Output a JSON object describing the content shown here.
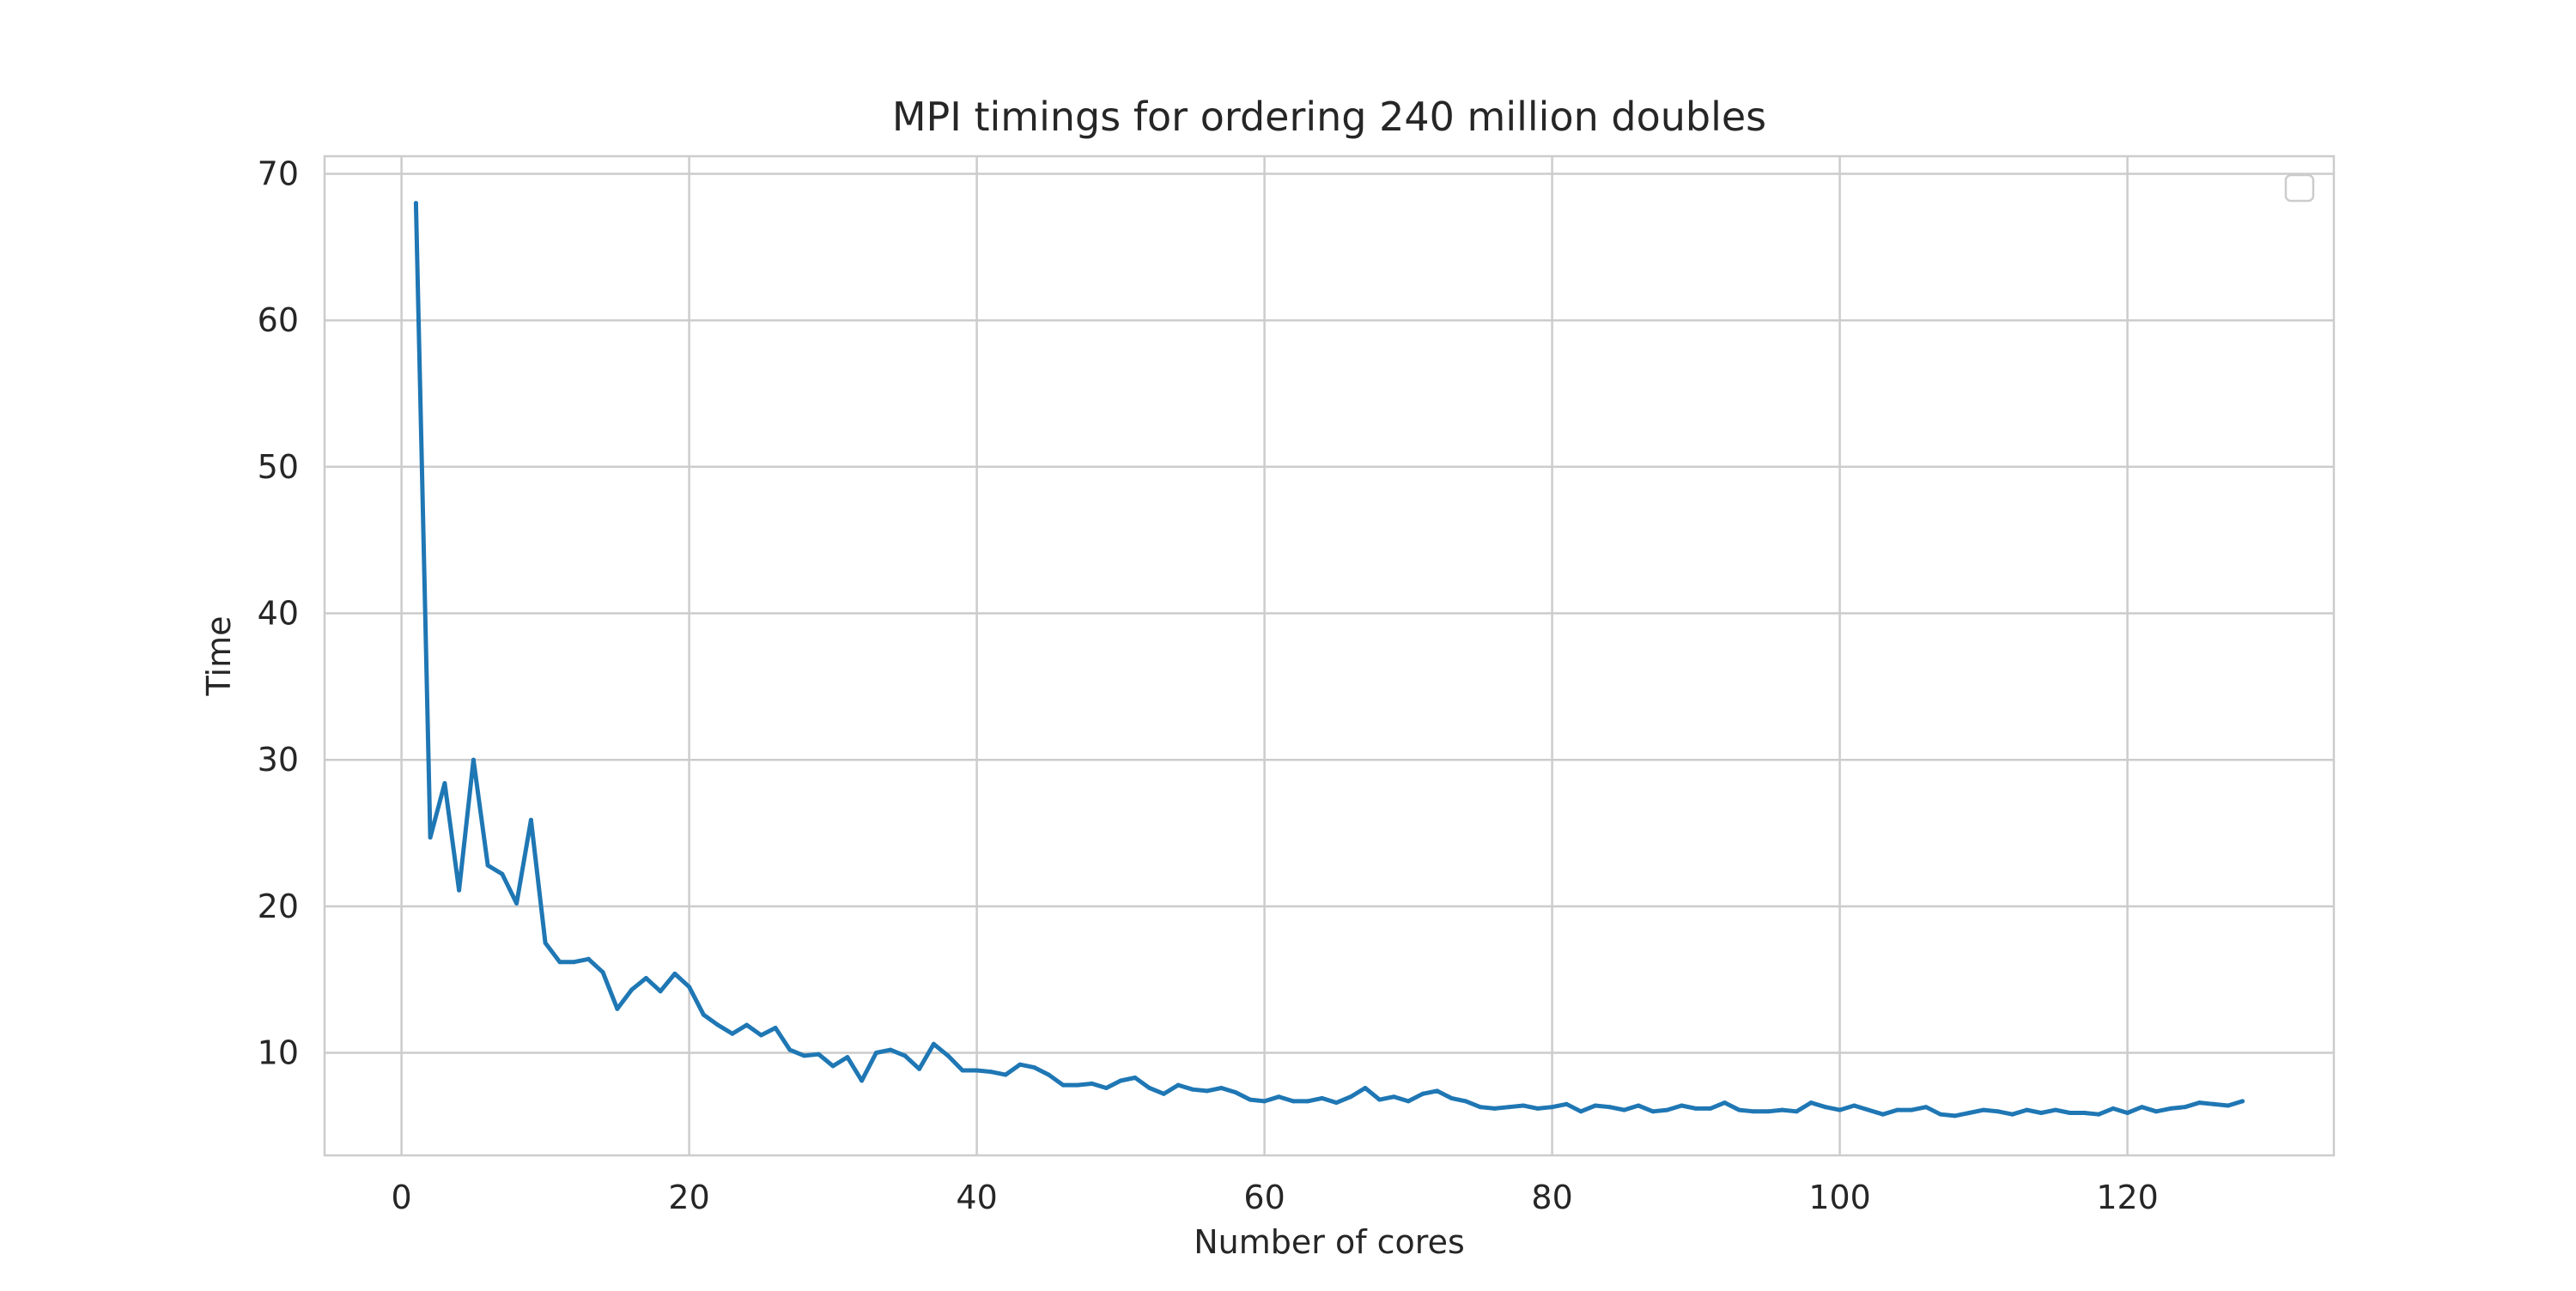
{
  "chart_data": {
    "type": "line",
    "title": "MPI timings for ordering 240 million doubles",
    "xlabel": "Number of cores",
    "ylabel": "Time",
    "xlim": [
      -5.35,
      134.35
    ],
    "ylim": [
      3.0,
      71.2
    ],
    "xticks": [
      0,
      20,
      40,
      60,
      80,
      100,
      120
    ],
    "yticks": [
      10,
      20,
      30,
      40,
      50,
      60,
      70
    ],
    "grid": true,
    "legend": {
      "placement": "top-right",
      "entries": []
    },
    "series": [
      {
        "color": "#1f77b4",
        "x": [
          1,
          2,
          3,
          4,
          5,
          6,
          7,
          8,
          9,
          10,
          11,
          12,
          13,
          14,
          15,
          16,
          17,
          18,
          19,
          20,
          21,
          22,
          23,
          24,
          25,
          26,
          27,
          28,
          29,
          30,
          31,
          32,
          33,
          34,
          35,
          36,
          37,
          38,
          39,
          40,
          41,
          42,
          43,
          44,
          45,
          46,
          47,
          48,
          49,
          50,
          51,
          52,
          53,
          54,
          55,
          56,
          57,
          58,
          59,
          60,
          61,
          62,
          63,
          64,
          65,
          66,
          67,
          68,
          69,
          70,
          71,
          72,
          73,
          74,
          75,
          76,
          77,
          78,
          79,
          80,
          81,
          82,
          83,
          84,
          85,
          86,
          87,
          88,
          89,
          90,
          91,
          92,
          93,
          94,
          95,
          96,
          97,
          98,
          99,
          100,
          101,
          102,
          103,
          104,
          105,
          106,
          107,
          108,
          109,
          110,
          111,
          112,
          113,
          114,
          115,
          116,
          117,
          118,
          119,
          120,
          121,
          122,
          123,
          124,
          125,
          126,
          127,
          128
        ],
        "y": [
          68.0,
          24.7,
          28.4,
          21.1,
          30.0,
          22.8,
          22.2,
          20.2,
          25.9,
          17.5,
          16.2,
          16.2,
          16.4,
          15.5,
          13.0,
          14.3,
          15.1,
          14.2,
          15.4,
          14.5,
          12.6,
          11.9,
          11.3,
          11.9,
          11.2,
          11.7,
          10.2,
          9.8,
          9.9,
          9.1,
          9.7,
          8.1,
          10.0,
          10.2,
          9.8,
          8.9,
          10.6,
          9.8,
          8.8,
          8.8,
          8.7,
          8.5,
          9.2,
          9.0,
          8.5,
          7.8,
          7.8,
          7.9,
          7.6,
          8.1,
          8.3,
          7.6,
          7.2,
          7.8,
          7.5,
          7.4,
          7.6,
          7.3,
          6.8,
          6.7,
          7.0,
          6.7,
          6.7,
          6.9,
          6.6,
          7.0,
          7.6,
          6.8,
          7.0,
          6.7,
          7.2,
          7.4,
          6.9,
          6.7,
          6.3,
          6.2,
          6.3,
          6.4,
          6.2,
          6.3,
          6.5,
          6.0,
          6.4,
          6.3,
          6.1,
          6.4,
          6.0,
          6.1,
          6.4,
          6.2,
          6.2,
          6.6,
          6.1,
          6.0,
          6.0,
          6.1,
          6.0,
          6.6,
          6.3,
          6.1,
          6.4,
          6.1,
          5.8,
          6.1,
          6.1,
          6.3,
          5.8,
          5.7,
          5.9,
          6.1,
          6.0,
          5.8,
          6.1,
          5.9,
          6.1,
          5.9,
          5.9,
          5.8,
          6.2,
          5.9,
          6.3,
          6.0,
          6.2,
          6.3,
          6.6,
          6.5,
          6.4,
          6.7
        ]
      }
    ]
  }
}
